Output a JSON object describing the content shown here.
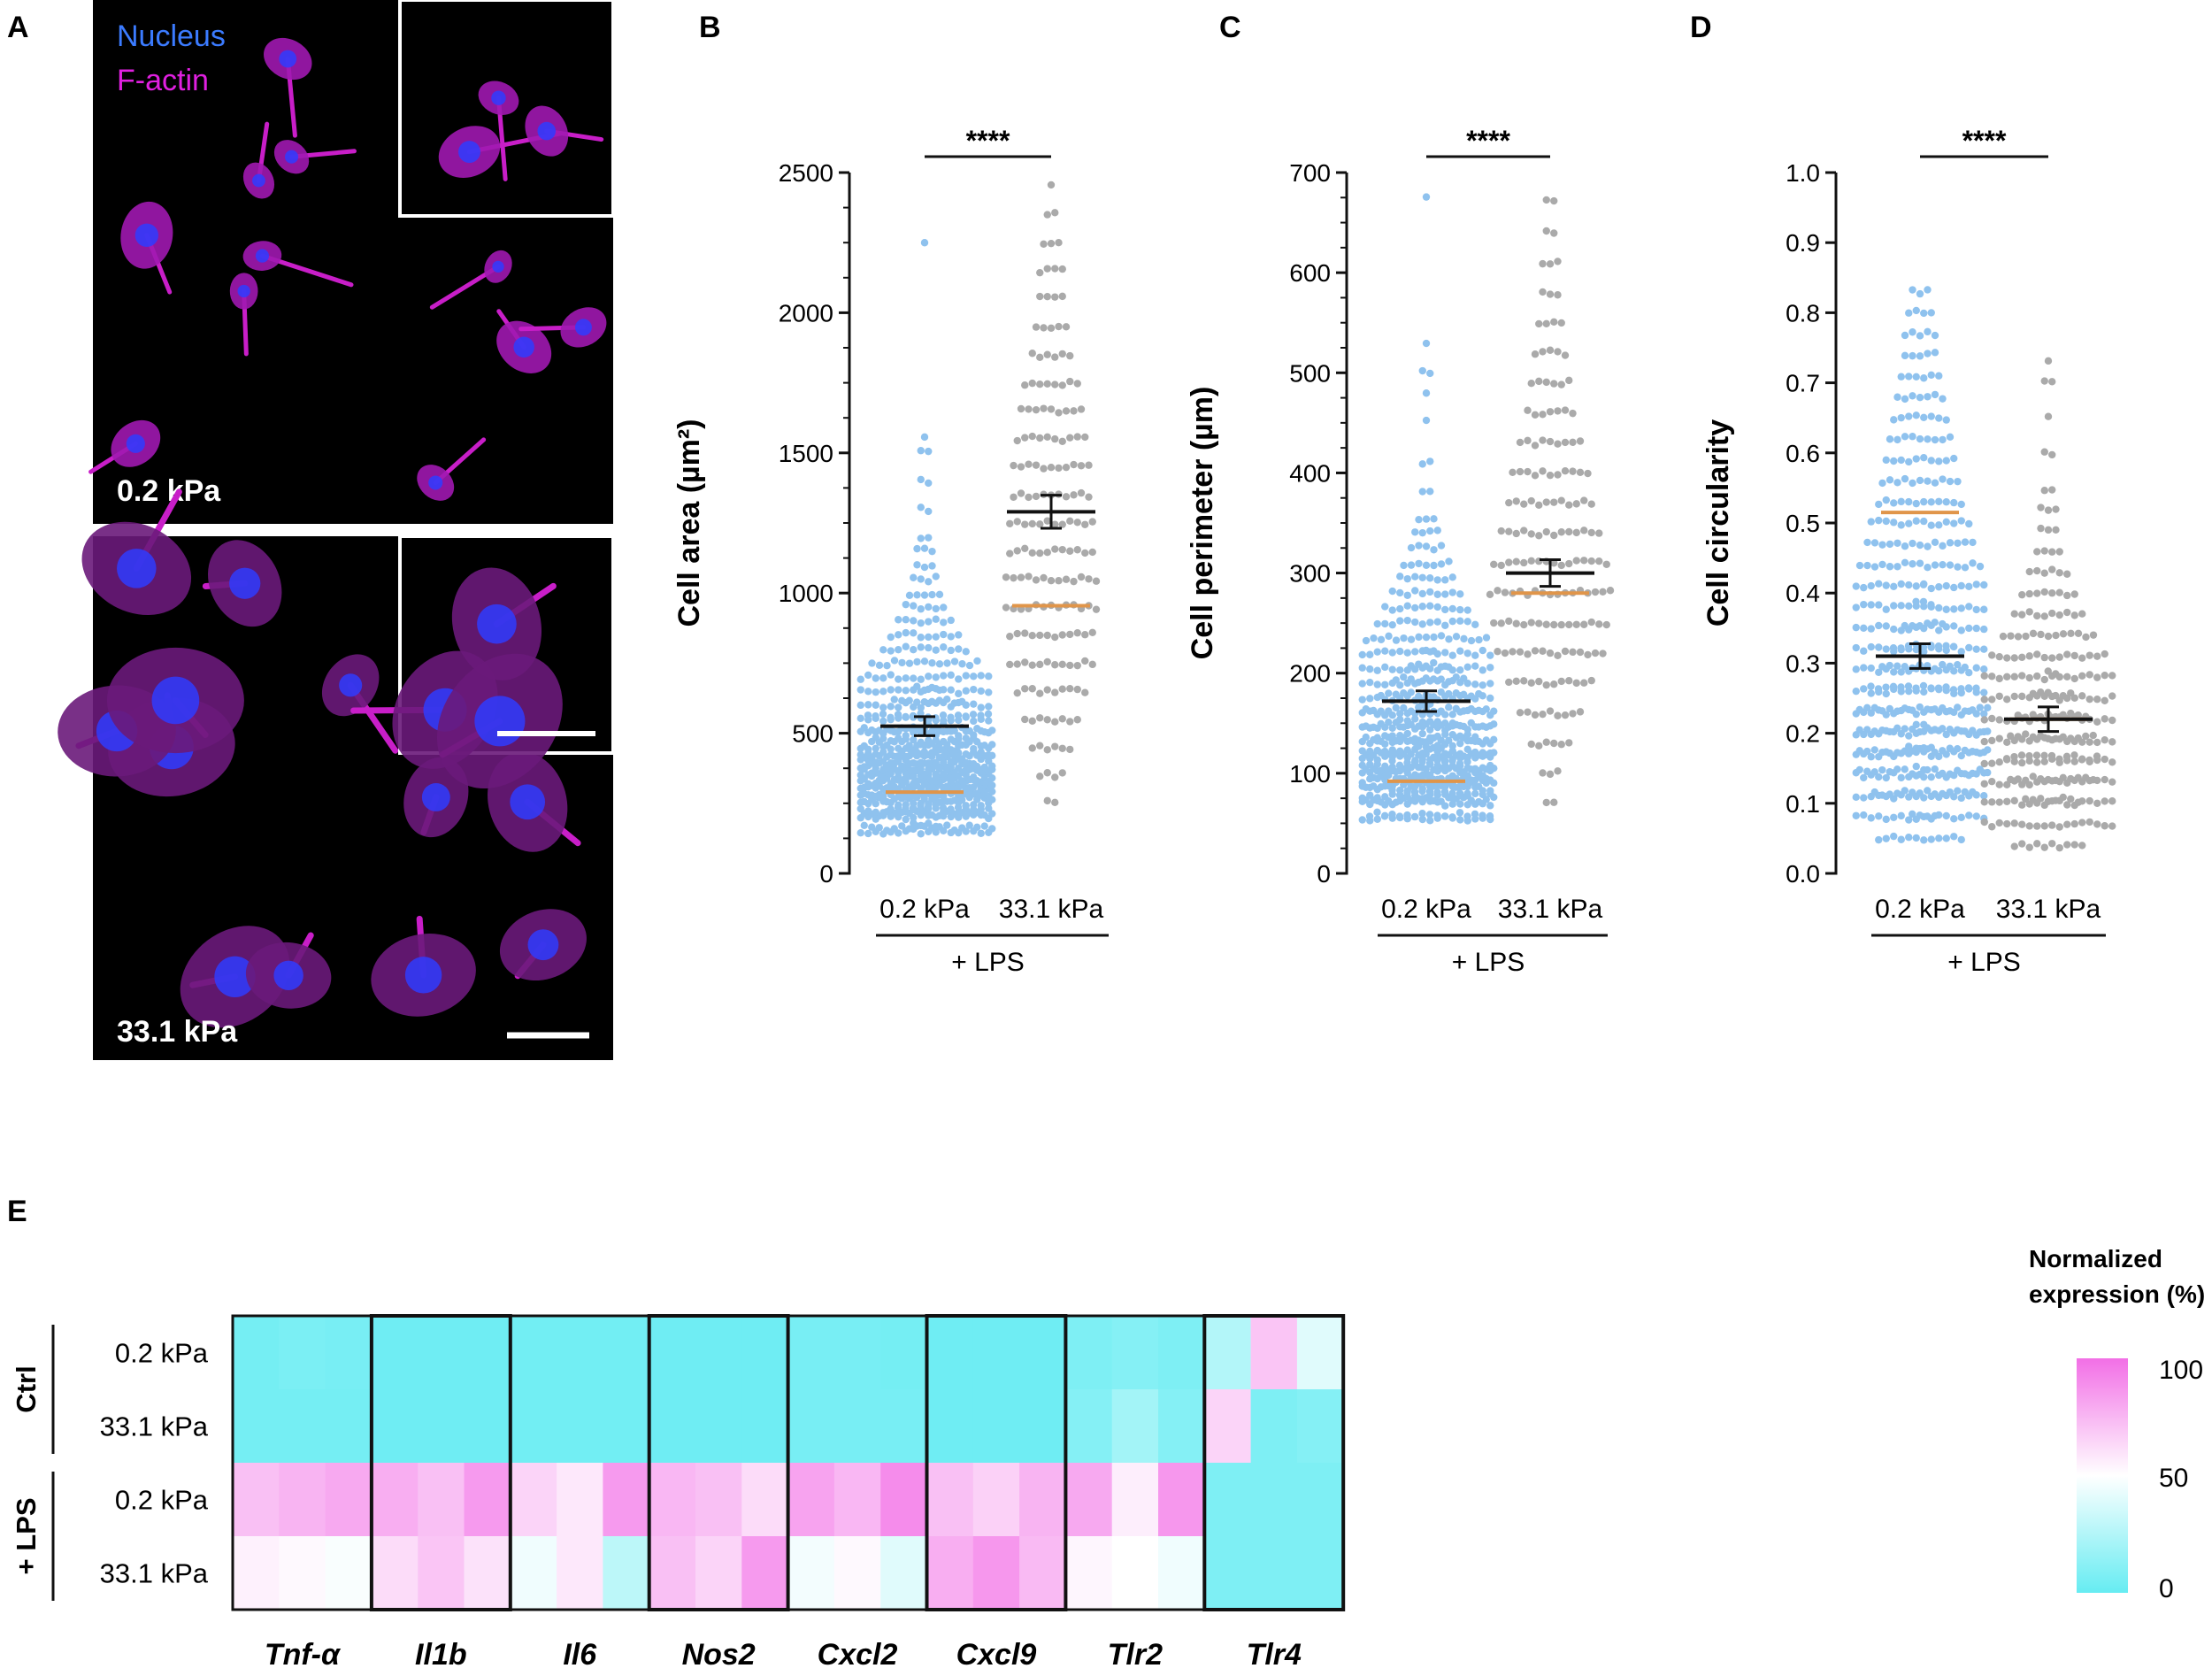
{
  "panel_letters": [
    "A",
    "B",
    "C",
    "D",
    "E"
  ],
  "micrographs": [
    {
      "legend": [
        "Nucleus",
        "F-actin"
      ],
      "legend_colors": [
        "#3b7bff",
        "#e020e0"
      ],
      "label": "0.2 kPa"
    },
    {
      "label": "33.1 kPa"
    }
  ],
  "colors": {
    "soft": "#8fc2ee",
    "stiff": "#aaaaaa",
    "median": "#e0954a",
    "mean": "#111111",
    "heat_low": "#66ecf2",
    "heat_mid": "#ffffff",
    "heat_high": "#f26fe6"
  },
  "chart_data": [
    {
      "type": "scatter",
      "panel": "B",
      "ylabel": "Cell area (µm²)",
      "ylim": [
        0,
        2500
      ],
      "yticks": [
        0,
        500,
        1000,
        1500,
        2000,
        2500
      ],
      "categories": [
        "0.2 kPa",
        "33.1 kPa"
      ],
      "group_label": "+ LPS",
      "significance": "****",
      "series": [
        {
          "median": 290,
          "mean": 525,
          "sem": 15,
          "min": 140,
          "max": 2250,
          "distribution": [
            [
              150,
              40
            ],
            [
              200,
              65
            ],
            [
              250,
              80
            ],
            [
              300,
              80
            ],
            [
              350,
              72
            ],
            [
              400,
              62
            ],
            [
              450,
              50
            ],
            [
              500,
              42
            ],
            [
              550,
              35
            ],
            [
              600,
              28
            ],
            [
              650,
              22
            ],
            [
              700,
              18
            ],
            [
              750,
              15
            ],
            [
              800,
              12
            ],
            [
              850,
              10
            ],
            [
              900,
              8
            ],
            [
              950,
              6
            ],
            [
              1000,
              5
            ],
            [
              1050,
              4
            ],
            [
              1100,
              3
            ],
            [
              1150,
              3
            ],
            [
              1200,
              2
            ],
            [
              1300,
              2
            ],
            [
              1400,
              2
            ],
            [
              1500,
              2
            ],
            [
              1550,
              1
            ],
            [
              2250,
              1
            ]
          ]
        },
        {
          "median": 955,
          "mean": 1290,
          "sem": 40,
          "min": 210,
          "max": 2460,
          "distribution": [
            [
              250,
              2
            ],
            [
              350,
              4
            ],
            [
              450,
              6
            ],
            [
              550,
              8
            ],
            [
              650,
              10
            ],
            [
              750,
              12
            ],
            [
              850,
              12
            ],
            [
              950,
              13
            ],
            [
              1050,
              13
            ],
            [
              1150,
              12
            ],
            [
              1250,
              12
            ],
            [
              1350,
              11
            ],
            [
              1450,
              11
            ],
            [
              1550,
              10
            ],
            [
              1650,
              9
            ],
            [
              1750,
              8
            ],
            [
              1850,
              6
            ],
            [
              1950,
              5
            ],
            [
              2050,
              4
            ],
            [
              2150,
              4
            ],
            [
              2250,
              3
            ],
            [
              2350,
              2
            ],
            [
              2450,
              1
            ]
          ]
        }
      ]
    },
    {
      "type": "scatter",
      "panel": "C",
      "ylabel": "Cell perimeter (µm)",
      "ylim": [
        0,
        700
      ],
      "yticks": [
        0,
        100,
        200,
        300,
        400,
        500,
        600,
        700
      ],
      "categories": [
        "0.2 kPa",
        "33.1 kPa"
      ],
      "group_label": "+ LPS",
      "significance": "****",
      "series": [
        {
          "median": 92,
          "mean": 172,
          "sem": 5,
          "min": 50,
          "max": 675,
          "distribution": [
            [
              55,
              35
            ],
            [
              70,
              65
            ],
            [
              85,
              70
            ],
            [
              100,
              65
            ],
            [
              115,
              58
            ],
            [
              130,
              50
            ],
            [
              145,
              44
            ],
            [
              160,
              38
            ],
            [
              175,
              32
            ],
            [
              190,
              28
            ],
            [
              205,
              24
            ],
            [
              220,
              20
            ],
            [
              235,
              17
            ],
            [
              250,
              14
            ],
            [
              265,
              12
            ],
            [
              280,
              10
            ],
            [
              295,
              8
            ],
            [
              310,
              7
            ],
            [
              325,
              5
            ],
            [
              340,
              4
            ],
            [
              355,
              3
            ],
            [
              380,
              2
            ],
            [
              410,
              2
            ],
            [
              450,
              1
            ],
            [
              480,
              1
            ],
            [
              500,
              2
            ],
            [
              530,
              1
            ],
            [
              675,
              1
            ]
          ]
        },
        {
          "median": 280,
          "mean": 300,
          "sem": 8,
          "min": 60,
          "max": 675,
          "distribution": [
            [
              70,
              2
            ],
            [
              100,
              3
            ],
            [
              130,
              6
            ],
            [
              160,
              9
            ],
            [
              190,
              12
            ],
            [
              220,
              15
            ],
            [
              250,
              16
            ],
            [
              280,
              17
            ],
            [
              310,
              16
            ],
            [
              340,
              14
            ],
            [
              370,
              12
            ],
            [
              400,
              11
            ],
            [
              430,
              9
            ],
            [
              460,
              7
            ],
            [
              490,
              6
            ],
            [
              520,
              5
            ],
            [
              550,
              4
            ],
            [
              580,
              3
            ],
            [
              610,
              3
            ],
            [
              640,
              2
            ],
            [
              670,
              2
            ]
          ]
        }
      ]
    },
    {
      "type": "scatter",
      "panel": "D",
      "ylabel": "Cell circularity",
      "ylim": [
        0,
        1
      ],
      "yticks": [
        0.0,
        0.1,
        0.2,
        0.3,
        0.4,
        0.5,
        0.6,
        0.7,
        0.8,
        0.9,
        1.0
      ],
      "categories": [
        "0.2 kPa",
        "33.1 kPa"
      ],
      "group_label": "+ LPS",
      "significance": "****",
      "series": [
        {
          "median": 0.515,
          "mean": 0.31,
          "sem": 0.01,
          "min": 0.04,
          "max": 0.85,
          "distribution": [
            [
              0.05,
              12
            ],
            [
              0.08,
              22
            ],
            [
              0.11,
              32
            ],
            [
              0.14,
              38
            ],
            [
              0.17,
              40
            ],
            [
              0.2,
              38
            ],
            [
              0.23,
              36
            ],
            [
              0.26,
              33
            ],
            [
              0.29,
              30
            ],
            [
              0.32,
              27
            ],
            [
              0.35,
              24
            ],
            [
              0.38,
              21
            ],
            [
              0.41,
              19
            ],
            [
              0.44,
              17
            ],
            [
              0.47,
              15
            ],
            [
              0.5,
              14
            ],
            [
              0.53,
              12
            ],
            [
              0.56,
              11
            ],
            [
              0.59,
              10
            ],
            [
              0.62,
              9
            ],
            [
              0.65,
              8
            ],
            [
              0.68,
              7
            ],
            [
              0.71,
              6
            ],
            [
              0.74,
              5
            ],
            [
              0.77,
              5
            ],
            [
              0.8,
              4
            ],
            [
              0.83,
              3
            ]
          ]
        },
        {
          "median": 0.22,
          "mean": 0.22,
          "sem": 0.01,
          "min": 0.03,
          "max": 0.74,
          "distribution": [
            [
              0.04,
              10
            ],
            [
              0.07,
              18
            ],
            [
              0.1,
              26
            ],
            [
              0.13,
              30
            ],
            [
              0.16,
              31
            ],
            [
              0.19,
              30
            ],
            [
              0.22,
              28
            ],
            [
              0.25,
              24
            ],
            [
              0.28,
              20
            ],
            [
              0.31,
              16
            ],
            [
              0.34,
              13
            ],
            [
              0.37,
              10
            ],
            [
              0.4,
              8
            ],
            [
              0.43,
              6
            ],
            [
              0.46,
              4
            ],
            [
              0.49,
              3
            ],
            [
              0.52,
              3
            ],
            [
              0.55,
              2
            ],
            [
              0.6,
              2
            ],
            [
              0.65,
              1
            ],
            [
              0.7,
              2
            ],
            [
              0.73,
              1
            ]
          ]
        }
      ]
    },
    {
      "type": "heatmap",
      "panel": "E",
      "genes": [
        "Tnf-α",
        "Il1b",
        "Il6",
        "Nos2",
        "Cxcl2",
        "Cxcl9",
        "Tlr2",
        "Tlr4"
      ],
      "row_groups": [
        {
          "label": "Ctrl",
          "rows": 2
        },
        {
          "label": "+ LPS",
          "rows": 2
        }
      ],
      "rows": [
        "0.2 kPa",
        "33.1 kPa",
        "0.2 kPa",
        "33.1 kPa"
      ],
      "replicates_per_gene": 3,
      "values": [
        [
          5,
          7,
          6,
          3,
          3,
          3,
          4,
          4,
          4,
          3,
          3,
          3,
          6,
          6,
          5,
          3,
          3,
          3,
          8,
          10,
          8,
          25,
          70,
          40
        ],
        [
          5,
          5,
          5,
          3,
          3,
          3,
          4,
          4,
          4,
          3,
          3,
          3,
          6,
          6,
          6,
          3,
          3,
          3,
          10,
          20,
          10,
          65,
          8,
          10
        ],
        [
          72,
          76,
          80,
          78,
          72,
          85,
          65,
          58,
          85,
          75,
          72,
          62,
          82,
          75,
          90,
          72,
          66,
          76,
          80,
          56,
          86,
          8,
          8,
          8
        ],
        [
          55,
          52,
          48,
          62,
          70,
          60,
          45,
          58,
          28,
          72,
          65,
          85,
          46,
          52,
          40,
          78,
          86,
          74,
          53,
          50,
          45,
          8,
          8,
          8
        ]
      ],
      "colorbar_title": "Normalized expression (%)",
      "colorbar_ticks": [
        100,
        50,
        0
      ]
    }
  ]
}
